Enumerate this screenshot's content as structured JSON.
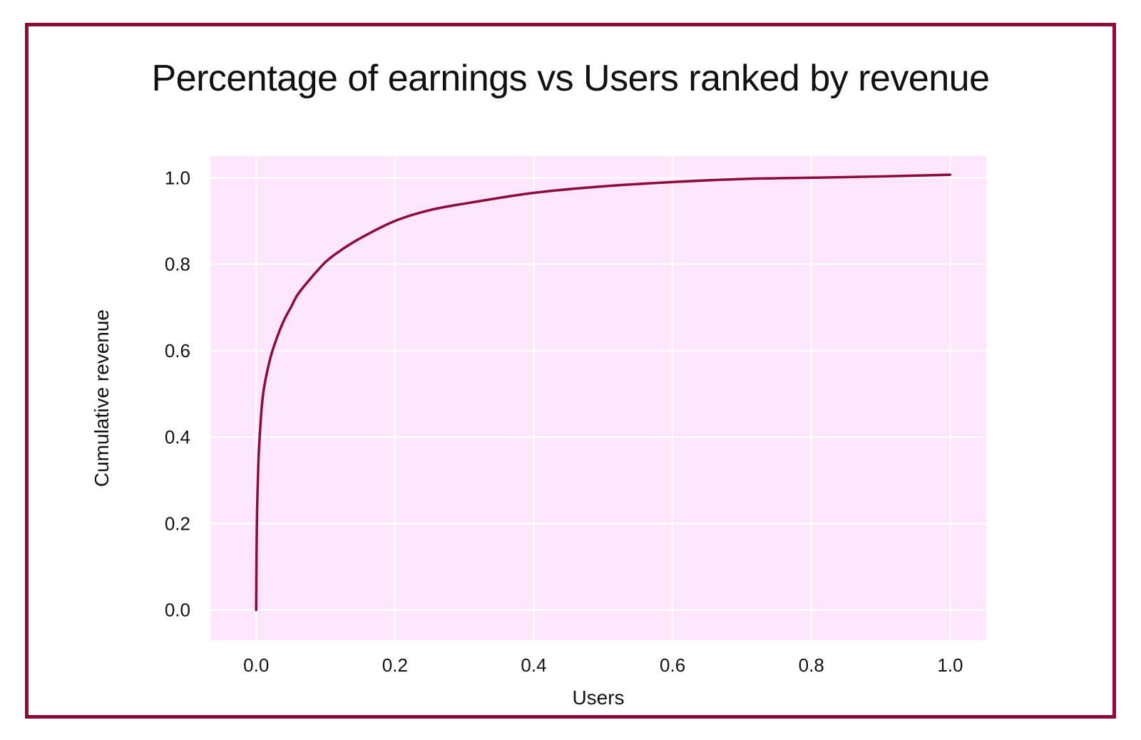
{
  "chart_data": {
    "type": "line",
    "title": "Percentage of earnings vs Users ranked by revenue",
    "xlabel": "Users",
    "ylabel": "Cumulative revenue",
    "xlim": [
      -0.066,
      1.052
    ],
    "ylim": [
      -0.07,
      1.05
    ],
    "xticks": [
      0.0,
      0.2,
      0.4,
      0.6,
      0.8,
      1.0
    ],
    "xtick_labels": [
      "0.0",
      "0.2",
      "0.4",
      "0.6",
      "0.8",
      "1.0"
    ],
    "yticks": [
      0.0,
      0.2,
      0.4,
      0.6,
      0.8,
      1.0
    ],
    "ytick_labels": [
      "0.0",
      "0.2",
      "0.4",
      "0.6",
      "0.8",
      "1.0"
    ],
    "grid": true,
    "series": [
      {
        "x": [
          0.0,
          0.001,
          0.003,
          0.005,
          0.01,
          0.02,
          0.03,
          0.04,
          0.05,
          0.06,
          0.08,
          0.1,
          0.12,
          0.15,
          0.2,
          0.25,
          0.3,
          0.4,
          0.5,
          0.6,
          0.7,
          0.8,
          0.9,
          1.0
        ],
        "y": [
          0.0,
          0.2,
          0.33,
          0.4,
          0.5,
          0.58,
          0.63,
          0.67,
          0.7,
          0.73,
          0.77,
          0.805,
          0.83,
          0.86,
          0.9,
          0.925,
          0.94,
          0.965,
          0.98,
          0.99,
          0.997,
          1.0,
          1.003,
          1.007
        ]
      }
    ],
    "colors": {
      "line": "#8c0a3c",
      "plot_background": "#fde6fb",
      "grid": "#ffffff",
      "frame": "#8c0a3c"
    }
  }
}
